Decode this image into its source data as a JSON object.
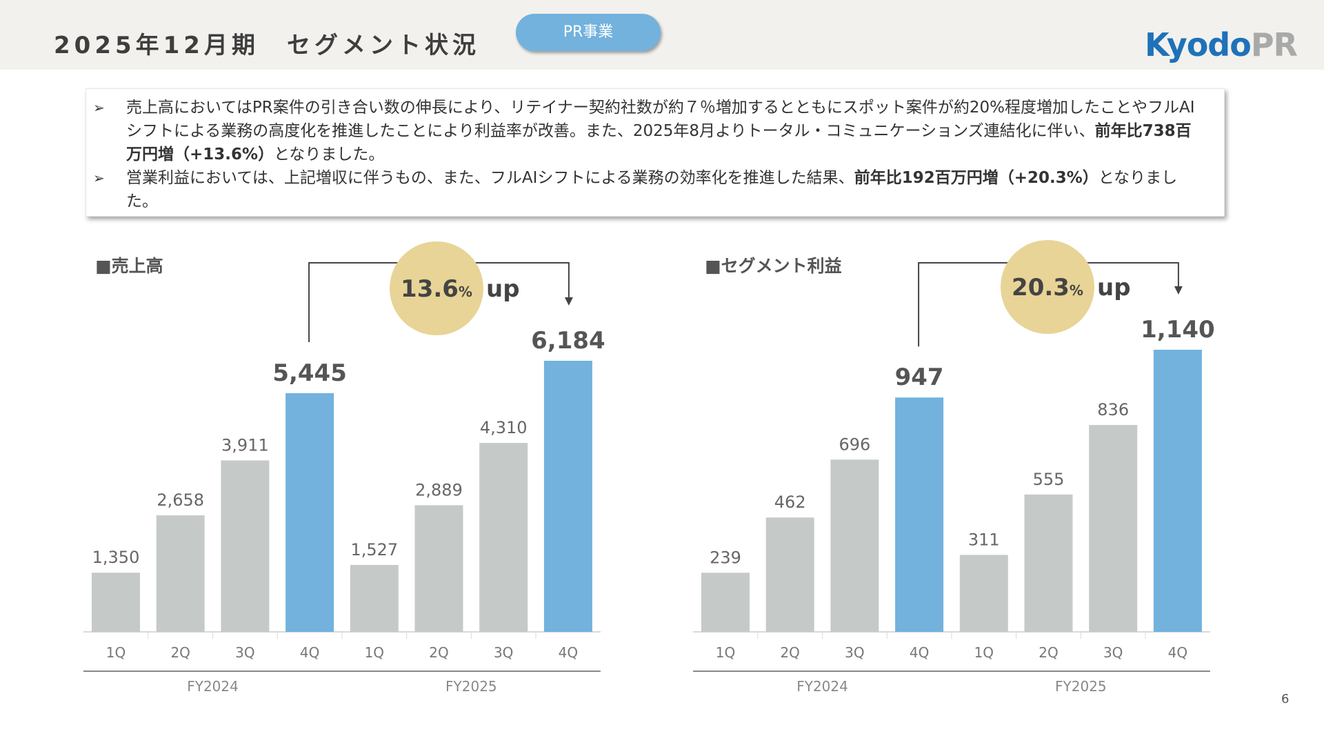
{
  "header": {
    "title": "2025年12月期　セグメント状況",
    "segment_pill": "PR事業",
    "logo_part1": "Kyodo",
    "logo_part2": "PR"
  },
  "summary": {
    "bullet_marker": "➢",
    "bullet1_pre": "売上高においてはPR案件の引き合い数の伸長により、リテイナー契約社数が約７％増加するとともにスポット案件が約20%程度増加したことやフルAIシフトによる業務の高度化を推進したことにより利益率が改善。また、2025年8月よりトータル・コミュニケーションズ連結化に伴い、",
    "bullet1_bold": "前年比738百万円増（+13.6%）",
    "bullet1_post": "となりました。",
    "bullet2_pre": "営業利益においては、上記増収に伴うもの、また、フルAIシフトによる業務の効率化を推進した結果、",
    "bullet2_bold": "前年比192百万円増（+20.3%）",
    "bullet2_post": "となりました。"
  },
  "colors": {
    "bar_normal": "#c5cac8",
    "bar_highlight": "#72b2dd",
    "growth_circle": "#e8d496",
    "header_bg": "#f2f1ee",
    "logo_blue": "#1e72b9",
    "logo_gray": "#a9a9a9"
  },
  "chart_data": [
    {
      "type": "bar",
      "title": "■売上高",
      "categories": [
        "1Q",
        "2Q",
        "3Q",
        "4Q",
        "1Q",
        "2Q",
        "3Q",
        "4Q"
      ],
      "groups": [
        "FY2024",
        "FY2025"
      ],
      "values": [
        1350,
        2658,
        3911,
        5445,
        1527,
        2889,
        4310,
        6184
      ],
      "value_labels": [
        "1,350",
        "2,658",
        "3,911",
        "5,445",
        "1,527",
        "2,889",
        "4,310",
        "6,184"
      ],
      "highlight": [
        3,
        7
      ],
      "growth_value": "13.6",
      "growth_unit": "%",
      "growth_suffix": "up"
    },
    {
      "type": "bar",
      "title": "■セグメント利益",
      "categories": [
        "1Q",
        "2Q",
        "3Q",
        "4Q",
        "1Q",
        "2Q",
        "3Q",
        "4Q"
      ],
      "groups": [
        "FY2024",
        "FY2025"
      ],
      "values": [
        239,
        462,
        696,
        947,
        311,
        555,
        836,
        1140
      ],
      "value_labels": [
        "239",
        "462",
        "696",
        "947",
        "311",
        "555",
        "836",
        "1,140"
      ],
      "highlight": [
        3,
        7
      ],
      "growth_value": "20.3",
      "growth_unit": "%",
      "growth_suffix": "up"
    }
  ],
  "page_number": "6"
}
